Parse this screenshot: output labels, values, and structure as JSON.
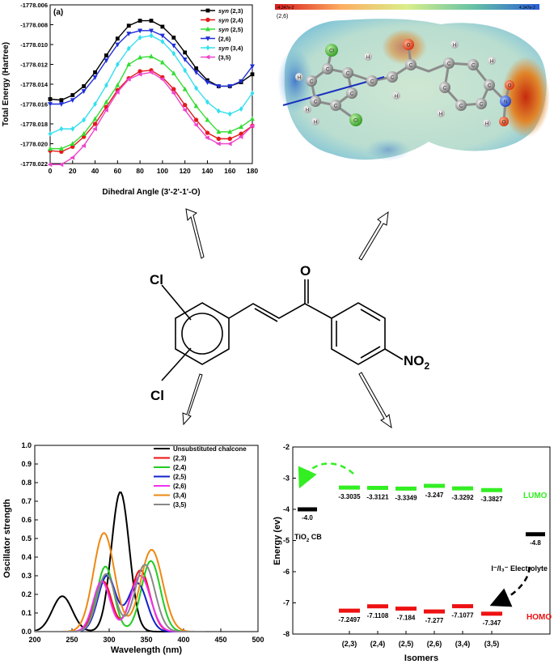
{
  "chart_data": [
    {
      "type": "line",
      "panel_label": "(a)",
      "xlabel": "Dihedral Angle (3'-2'-1'-O)",
      "ylabel": "Total Energy (Hartree)",
      "xlim": [
        0,
        180
      ],
      "ylim": [
        -1778.022,
        -1778.006
      ],
      "x_ticks": [
        "0",
        "20",
        "40",
        "60",
        "80",
        "100",
        "120",
        "140",
        "160",
        "180"
      ],
      "y_ticks": [
        "-1778.006",
        "-1778.008",
        "-1778.010",
        "-1778.012",
        "-1778.014",
        "-1778.016",
        "-1778.018",
        "-1778.020",
        "-1778.022"
      ],
      "legend_position": "top-right",
      "x": [
        0,
        10,
        20,
        30,
        40,
        50,
        60,
        70,
        80,
        90,
        100,
        110,
        120,
        130,
        140,
        150,
        160,
        170,
        180
      ],
      "series": [
        {
          "name": "syn (2,3)",
          "prefix": "syn",
          "suffix": "(2,3)",
          "color": "#000000",
          "marker": "square",
          "values": [
            -1778.0155,
            -1778.0156,
            -1778.0151,
            -1778.0142,
            -1778.0128,
            -1778.0111,
            -1778.0094,
            -1778.0081,
            -1778.0076,
            -1778.0076,
            -1778.0082,
            -1778.0093,
            -1778.0108,
            -1778.0124,
            -1778.0136,
            -1778.0142,
            -1778.0142,
            -1778.0138,
            -1778.013
          ]
        },
        {
          "name": "syn (2,4)",
          "prefix": "syn",
          "suffix": "(2,4)",
          "color": "#e41a1c",
          "marker": "circle",
          "values": [
            -1778.0207,
            -1778.0208,
            -1778.0203,
            -1778.0193,
            -1778.018,
            -1778.0163,
            -1778.0146,
            -1778.0134,
            -1778.0127,
            -1778.0126,
            -1778.0133,
            -1778.0145,
            -1778.0161,
            -1778.0176,
            -1778.0189,
            -1778.0195,
            -1778.0195,
            -1778.019,
            -1778.0182
          ]
        },
        {
          "name": "syn (2,5)",
          "prefix": "syn",
          "suffix": "(2,5)",
          "color": "#33dd33",
          "marker": "triangle-up",
          "values": [
            -1778.0205,
            -1778.0205,
            -1778.02,
            -1778.019,
            -1778.0175,
            -1778.0158,
            -1778.0141,
            -1778.012,
            -1778.0113,
            -1778.0112,
            -1778.0118,
            -1778.0129,
            -1778.0145,
            -1778.0162,
            -1778.0176,
            -1778.0188,
            -1778.0188,
            -1778.0183,
            -1778.0175
          ]
        },
        {
          "name": "(2,6)",
          "prefix": "",
          "suffix": "(2,6)",
          "color": "#1f2fd6",
          "marker": "triangle-down",
          "values": [
            -1778.016,
            -1778.016,
            -1778.0156,
            -1778.0147,
            -1778.0133,
            -1778.0116,
            -1778.01,
            -1778.0089,
            -1778.0086,
            -1778.0086,
            -1778.0091,
            -1778.0101,
            -1778.0115,
            -1778.0128,
            -1778.0138,
            -1778.0142,
            -1778.0142,
            -1778.0137,
            -1778.0122
          ]
        },
        {
          "name": "syn (3,4)",
          "prefix": "syn",
          "suffix": "(3,4)",
          "color": "#33e0ee",
          "marker": "diamond",
          "values": [
            -1778.019,
            -1778.0185,
            -1778.0185,
            -1778.0176,
            -1778.016,
            -1778.0141,
            -1778.012,
            -1778.0104,
            -1778.0093,
            -1778.0091,
            -1778.0097,
            -1778.0109,
            -1778.0126,
            -1778.0144,
            -1778.0158,
            -1778.0167,
            -1778.017,
            -1778.0165,
            -1778.0149
          ]
        },
        {
          "name": "(3,5)",
          "prefix": "",
          "suffix": "(3,5)",
          "color": "#ee44cc",
          "marker": "triangle-left",
          "values": [
            -1778.0221,
            -1778.0221,
            -1778.0214,
            -1778.0202,
            -1778.0185,
            -1778.0166,
            -1778.0148,
            -1778.0135,
            -1778.013,
            -1778.0128,
            -1778.0135,
            -1778.0149,
            -1778.0166,
            -1778.0181,
            -1778.0194,
            -1778.02,
            -1778.02,
            -1778.0193,
            -1778.0182
          ]
        }
      ]
    },
    {
      "type": "line",
      "xlabel": "Wavelength (nm)",
      "ylabel": "Oscillator strength",
      "xlim": [
        200,
        500
      ],
      "ylim": [
        0.0,
        1.0
      ],
      "x_ticks": [
        "200",
        "250",
        "300",
        "350",
        "400",
        "450",
        "500"
      ],
      "y_ticks": [
        "0.0",
        "0.1",
        "0.2",
        "0.3",
        "0.4",
        "0.5",
        "0.6",
        "0.7",
        "0.8",
        "0.9",
        "1.0"
      ],
      "legend_position": "top-right",
      "series": [
        {
          "name": "Unsubstituted chalcone",
          "color": "#000000",
          "peaks": [
            {
              "center": 237,
              "height": 0.19,
              "width": 19
            },
            {
              "center": 315,
              "height": 0.75,
              "width": 17
            }
          ]
        },
        {
          "name": "(2,3)",
          "color": "#ee1111",
          "peaks": [
            {
              "center": 292,
              "height": 0.27,
              "width": 16
            },
            {
              "center": 342,
              "height": 0.33,
              "width": 18
            }
          ]
        },
        {
          "name": "(2,4)",
          "color": "#22cc22",
          "peaks": [
            {
              "center": 295,
              "height": 0.35,
              "width": 16
            },
            {
              "center": 356,
              "height": 0.38,
              "width": 18
            }
          ]
        },
        {
          "name": "(2,5)",
          "color": "#1122cc",
          "peaks": [
            {
              "center": 297,
              "height": 0.3,
              "width": 17
            },
            {
              "center": 338,
              "height": 0.26,
              "width": 18
            }
          ]
        },
        {
          "name": "(2,6)",
          "color": "#ee33ee",
          "peaks": [
            {
              "center": 290,
              "height": 0.27,
              "width": 16
            },
            {
              "center": 342,
              "height": 0.3,
              "width": 19
            }
          ]
        },
        {
          "name": "(3,4)",
          "color": "#ee8811",
          "peaks": [
            {
              "center": 293,
              "height": 0.53,
              "width": 20
            },
            {
              "center": 357,
              "height": 0.44,
              "width": 21
            }
          ]
        },
        {
          "name": "(3,5)",
          "color": "#888888",
          "peaks": [
            {
              "center": 296,
              "height": 0.31,
              "width": 17
            },
            {
              "center": 348,
              "height": 0.36,
              "width": 19
            }
          ]
        }
      ]
    },
    {
      "type": "bar",
      "xlabel": "Isomers",
      "ylabel": "Energy (ev)",
      "ylim": [
        -8,
        -2
      ],
      "y_ticks": [
        "-2",
        "-3",
        "-4",
        "-5",
        "-6",
        "-7",
        "-8"
      ],
      "categories": [
        "(2,3)",
        "(2,4)",
        "(2,5)",
        "(2,6)",
        "(3,4)",
        "(3,5)"
      ],
      "series": [
        {
          "name": "LUMO",
          "color": "#33ee22",
          "values": [
            -3.3035,
            -3.3121,
            -3.3349,
            -3.247,
            -3.3292,
            -3.3827
          ],
          "labels": [
            "-3.3035",
            "-3.3121",
            "-3.3349",
            "-3.247",
            "-3.3292",
            "-3.3827"
          ]
        },
        {
          "name": "HOMO",
          "color": "#ee1111",
          "values": [
            -7.2497,
            -7.1108,
            -7.184,
            -7.277,
            -7.1077,
            -7.347
          ],
          "labels": [
            "-7.2497",
            "-7.1108",
            "-7.184",
            "-7.277",
            "-7.1077",
            "-7.347"
          ]
        }
      ],
      "annotations": {
        "tio2": {
          "value": -4.0,
          "label": "-4.0",
          "text": "TiO",
          "sub": "2",
          "text_after": " CB"
        },
        "electrolyte": {
          "value": -4.8,
          "label": "-4.8",
          "text": "I⁻/I₃⁻ Electrolyte"
        }
      }
    }
  ],
  "esp_map": {
    "scale_min": "-4.347e-2",
    "scale_max": "4.347e-2",
    "label": "(2,6)",
    "atom_labels": [
      "Cl",
      "Cl",
      "O",
      "O",
      "O",
      "N",
      "H",
      "H",
      "H",
      "H",
      "H",
      "H",
      "H",
      "H",
      "H",
      "C",
      "C",
      "C",
      "C",
      "C",
      "C",
      "C",
      "C",
      "C",
      "C",
      "C",
      "C",
      "C",
      "C",
      "C"
    ]
  },
  "structure": {
    "cl_top": "Cl",
    "cl_bottom": "Cl",
    "oxygen": "O",
    "nitro": "NO",
    "nitro_sub": "2"
  }
}
